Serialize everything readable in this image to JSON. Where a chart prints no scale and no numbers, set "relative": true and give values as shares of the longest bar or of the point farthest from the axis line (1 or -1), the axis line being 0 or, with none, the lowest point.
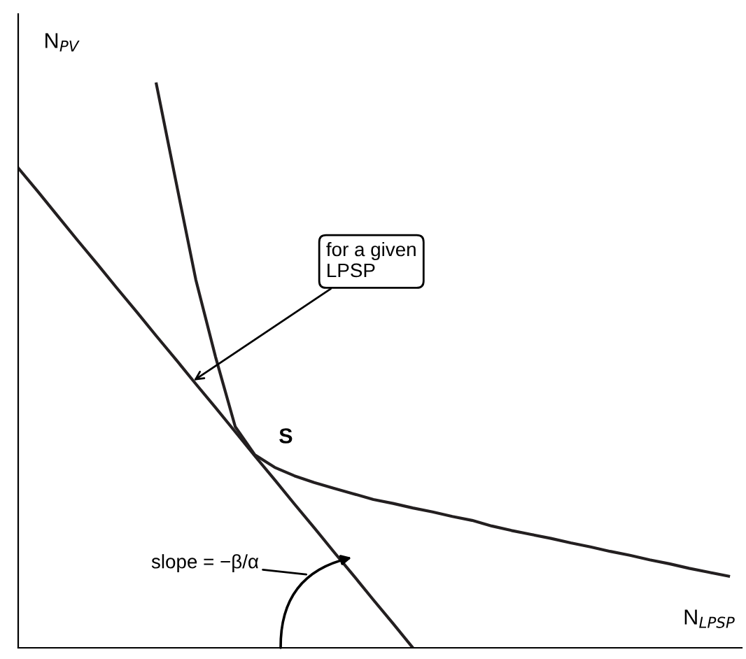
{
  "chart_data": {
    "type": "line",
    "relative": true,
    "xlabel": "N$_{LPSP}$",
    "ylabel": "N$_{PV}$",
    "categories": [
      null,
      null,
      null,
      null,
      null,
      null,
      null,
      null,
      null,
      null,
      null,
      null,
      null,
      null,
      null,
      null,
      null,
      null,
      null,
      null,
      null,
      null,
      null,
      null,
      null,
      null,
      null,
      null,
      null,
      null,
      null,
      null,
      null,
      null,
      null,
      null,
      null
    ],
    "series": [
      {
        "color": "#231f20",
        "values": [
          null,
          null,
          null,
          null,
          null,
          null,
          null,
          1.0,
          0.826,
          0.653,
          0.516,
          0.392,
          0.342,
          0.32,
          0.305,
          0.293,
          0.283,
          0.273,
          0.263,
          0.256,
          0.248,
          0.241,
          0.233,
          0.226,
          0.216,
          0.208,
          0.201,
          0.194,
          0.186,
          0.179,
          0.171,
          0.164,
          0.156,
          0.149,
          0.141,
          0.134,
          0.127
        ]
      },
      {
        "color": "#231f20",
        "values": [
          0.851,
          0.809,
          0.766,
          0.723,
          0.681,
          0.638,
          0.596,
          0.553,
          0.511,
          0.468,
          0.426,
          0.383,
          0.34,
          0.298,
          0.255,
          0.213,
          0.17,
          0.128,
          0.085,
          0.043,
          0.0,
          null,
          null,
          null,
          null,
          null,
          null,
          null,
          null,
          null,
          null,
          null,
          null,
          null,
          null,
          null,
          null
        ]
      }
    ],
    "annotations": [
      "for a given\nLPSP",
      "S",
      "slope = −β/α"
    ],
    "grid": false,
    "legend": false,
    "marker": "none",
    "line_style": "solid"
  }
}
